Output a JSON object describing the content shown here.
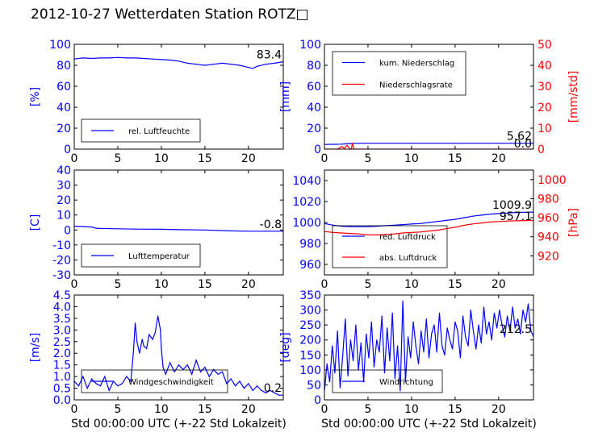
{
  "figure_title": "2012-10-27 Wetterdaten Station ROTZ□",
  "x_axis_label": "Std 00:00:00 UTC (+-22 Std Lokalzeit)",
  "chart_data": [
    {
      "id": "humidity",
      "type": "line",
      "ylabel": "[%]",
      "xlim": [
        0,
        24
      ],
      "ylim": [
        0,
        100
      ],
      "xticks": [
        0,
        5,
        10,
        15,
        20
      ],
      "yticks": [
        0,
        20,
        40,
        60,
        80,
        100
      ],
      "grid": false,
      "legend_position": "lower-left",
      "last_value_label": "83.4",
      "series": [
        {
          "name": "rel. Luftfeuchte",
          "color": "#0000ff",
          "axis": "left",
          "x": [
            0,
            1,
            2,
            3,
            4,
            5,
            6,
            7,
            8,
            9,
            10,
            11,
            12,
            13,
            14,
            15,
            16,
            17,
            18,
            19,
            20,
            20.5,
            21,
            22,
            23,
            24
          ],
          "y": [
            86,
            87,
            86.5,
            87,
            87,
            87.5,
            87,
            87,
            86.5,
            86,
            85.5,
            85,
            84,
            82,
            81,
            80,
            81,
            82,
            81,
            80,
            78,
            77,
            79,
            81,
            82,
            83.4
          ]
        }
      ]
    },
    {
      "id": "precipitation",
      "type": "line",
      "ylabel": "[mm]",
      "ylabel_right": "[mm/std]",
      "xlim": [
        0,
        24
      ],
      "ylim": [
        0,
        100
      ],
      "ylim_right": [
        0,
        50
      ],
      "xticks": [
        0,
        5,
        10,
        15,
        20
      ],
      "yticks": [
        0,
        20,
        40,
        60,
        80,
        100
      ],
      "yticks_right": [
        0,
        10,
        20,
        30,
        40,
        50
      ],
      "grid": false,
      "legend_position": "upper-left",
      "last_value_label": "5.62",
      "last_value_label_right": "0.0",
      "series": [
        {
          "name": "kum. Niederschlag",
          "color": "#0000ff",
          "axis": "left",
          "x": [
            0,
            1,
            2,
            2.5,
            3,
            3.5,
            4,
            24
          ],
          "y": [
            4.5,
            4.6,
            4.8,
            5.1,
            5.4,
            5.6,
            5.62,
            5.62
          ]
        },
        {
          "name": "Niederschlagsrate",
          "color": "#ff0000",
          "axis": "right",
          "x": [
            0,
            1.5,
            2,
            2.3,
            2.6,
            2.9,
            3.1,
            3.2,
            3.4,
            3.6,
            24
          ],
          "y": [
            0,
            0,
            1.2,
            0.3,
            1.8,
            0.2,
            0,
            2.8,
            0,
            0,
            0
          ]
        }
      ]
    },
    {
      "id": "temperature",
      "type": "line",
      "ylabel": "[C]",
      "xlim": [
        0,
        24
      ],
      "ylim": [
        -30,
        40
      ],
      "xticks": [
        0,
        5,
        10,
        15,
        20
      ],
      "yticks": [
        -30,
        -20,
        -10,
        0,
        10,
        20,
        30,
        40
      ],
      "grid": false,
      "legend_position": "lower-left",
      "last_value_label": "-0.8",
      "series": [
        {
          "name": "Lufttemperatur",
          "color": "#0000ff",
          "axis": "left",
          "x": [
            0,
            1,
            2,
            2.5,
            3,
            5,
            7,
            10,
            12,
            15,
            18,
            20,
            22,
            24
          ],
          "y": [
            2.5,
            2.3,
            2.0,
            1.2,
            1.0,
            0.8,
            0.6,
            0.5,
            0.2,
            0,
            -0.6,
            -0.8,
            -0.8,
            -0.8
          ]
        }
      ]
    },
    {
      "id": "pressure",
      "type": "line",
      "ylabel_right": "[hPa]",
      "xlim": [
        0,
        24
      ],
      "ylim": [
        950,
        1050
      ],
      "ylim_right": [
        900,
        1010
      ],
      "xticks": [
        0,
        5,
        10,
        15,
        20
      ],
      "yticks": [
        960,
        980,
        1000,
        1020,
        1040
      ],
      "yticks_right": [
        920,
        940,
        960,
        980,
        1000
      ],
      "grid": false,
      "legend_position": "lower-left",
      "last_value_label": "1009.9",
      "last_value_label_right": "957.1",
      "series": [
        {
          "name": "red. Luftdruck",
          "color": "#0000ff",
          "axis": "left",
          "x": [
            0,
            1,
            2,
            3,
            4,
            5,
            6,
            7,
            8,
            9,
            10,
            11,
            12,
            13,
            14,
            15,
            16,
            17,
            18,
            19,
            20,
            21,
            22,
            23,
            24
          ],
          "y": [
            999,
            997.5,
            996.5,
            996,
            996,
            996,
            996.5,
            997,
            997.5,
            998,
            998.5,
            999,
            1000,
            1001,
            1002,
            1003,
            1004.5,
            1006,
            1007,
            1008,
            1008.5,
            1009,
            1009.5,
            1009.8,
            1009.9
          ]
        },
        {
          "name": "abs. Luftdruck",
          "color": "#ff0000",
          "axis": "right",
          "x": [
            0,
            1,
            2,
            3,
            4,
            5,
            6,
            7,
            8,
            9,
            10,
            11,
            12,
            13,
            14,
            15,
            16,
            17,
            18,
            19,
            20,
            21,
            22,
            23,
            24
          ],
          "y": [
            945.5,
            944.5,
            944,
            943.5,
            943,
            942,
            942,
            942.5,
            943,
            944,
            944.5,
            945,
            946,
            947,
            948.5,
            950,
            952,
            953.5,
            954.5,
            955.5,
            956,
            956.5,
            956.8,
            957,
            957.1
          ]
        }
      ]
    },
    {
      "id": "windspeed",
      "type": "line",
      "ylabel": "[m/s]",
      "xlim": [
        0,
        24
      ],
      "ylim": [
        0,
        4.5
      ],
      "xticks": [
        0,
        5,
        10,
        15,
        20
      ],
      "yticks": [
        0,
        0.5,
        1.0,
        1.5,
        2.0,
        2.5,
        3.0,
        3.5,
        4.0,
        4.5
      ],
      "grid": false,
      "legend_position": "lower-left",
      "last_value_label": "0.2",
      "series": [
        {
          "name": "Windgeschwindigkeit",
          "color": "#0000ff",
          "axis": "left",
          "x": [
            0,
            0.5,
            1,
            1.5,
            2,
            2.5,
            3,
            3.5,
            4,
            4.5,
            5,
            5.5,
            6,
            6.5,
            6.8,
            7,
            7.2,
            7.5,
            7.8,
            8,
            8.3,
            8.6,
            9,
            9.3,
            9.6,
            9.9,
            10,
            10.2,
            10.5,
            11,
            11.5,
            12,
            12.5,
            13,
            13.5,
            14,
            14.5,
            15,
            15.5,
            16,
            16.5,
            17,
            17.5,
            18,
            18.5,
            19,
            19.5,
            20,
            20.5,
            21,
            21.5,
            22,
            22.5,
            23,
            23.5,
            24
          ],
          "y": [
            0.8,
            0.6,
            1.0,
            0.5,
            0.9,
            0.7,
            0.6,
            1.0,
            0.4,
            0.8,
            0.6,
            0.7,
            1.0,
            0.8,
            2.1,
            3.3,
            2.5,
            2.0,
            2.6,
            2.3,
            2.2,
            2.8,
            2.6,
            2.9,
            3.6,
            3.0,
            2.2,
            1.4,
            1.1,
            1.6,
            1.2,
            1.5,
            1.3,
            1.5,
            1.1,
            1.7,
            1.2,
            1.4,
            1.0,
            1.3,
            1.1,
            1.2,
            0.7,
            0.9,
            0.6,
            0.8,
            0.5,
            0.7,
            0.4,
            0.6,
            0.4,
            0.3,
            0.4,
            0.3,
            0.2,
            0.2
          ]
        }
      ]
    },
    {
      "id": "winddirection",
      "type": "line",
      "ylabel": "[deg]",
      "xlim": [
        0,
        24
      ],
      "ylim": [
        0,
        350
      ],
      "xticks": [
        0,
        5,
        10,
        15,
        20
      ],
      "yticks": [
        0,
        50,
        100,
        150,
        200,
        250,
        300,
        350
      ],
      "grid": false,
      "legend_position": "lower-left",
      "last_value_label": "212.5",
      "series": [
        {
          "name": "Windrichtung",
          "color": "#0000ff",
          "axis": "left",
          "x": [
            0,
            0.3,
            0.6,
            0.9,
            1.2,
            1.5,
            1.8,
            2.1,
            2.4,
            2.7,
            3,
            3.3,
            3.6,
            3.9,
            4.2,
            4.5,
            4.8,
            5.1,
            5.4,
            5.7,
            6,
            6.3,
            6.6,
            6.9,
            7.2,
            7.5,
            7.8,
            8.1,
            8.4,
            8.7,
            9,
            9.3,
            9.6,
            9.9,
            10.2,
            10.5,
            10.8,
            11.1,
            11.4,
            11.7,
            12,
            12.3,
            12.6,
            12.9,
            13.2,
            13.5,
            13.8,
            14.1,
            14.4,
            14.7,
            15,
            15.3,
            15.6,
            15.9,
            16.2,
            16.5,
            16.8,
            17.1,
            17.4,
            17.7,
            18,
            18.3,
            18.6,
            18.9,
            19.2,
            19.5,
            19.8,
            20.1,
            20.4,
            20.7,
            21,
            21.3,
            21.6,
            21.9,
            22.2,
            22.5,
            22.8,
            23.1,
            23.4,
            23.7,
            24
          ],
          "y": [
            30,
            120,
            60,
            180,
            90,
            230,
            40,
            150,
            270,
            80,
            200,
            130,
            250,
            100,
            190,
            60,
            220,
            140,
            260,
            110,
            200,
            160,
            280,
            90,
            240,
            130,
            290,
            70,
            180,
            30,
            330,
            60,
            210,
            140,
            260,
            180,
            120,
            230,
            160,
            270,
            140,
            220,
            250,
            160,
            290,
            180,
            150,
            240,
            200,
            170,
            260,
            230,
            140,
            280,
            210,
            180,
            300,
            230,
            170,
            250,
            190,
            310,
            220,
            260,
            200,
            290,
            240,
            300,
            250,
            210,
            280,
            230,
            310,
            240,
            270,
            220,
            300,
            260,
            320,
            230,
            212.5
          ]
        }
      ]
    }
  ]
}
